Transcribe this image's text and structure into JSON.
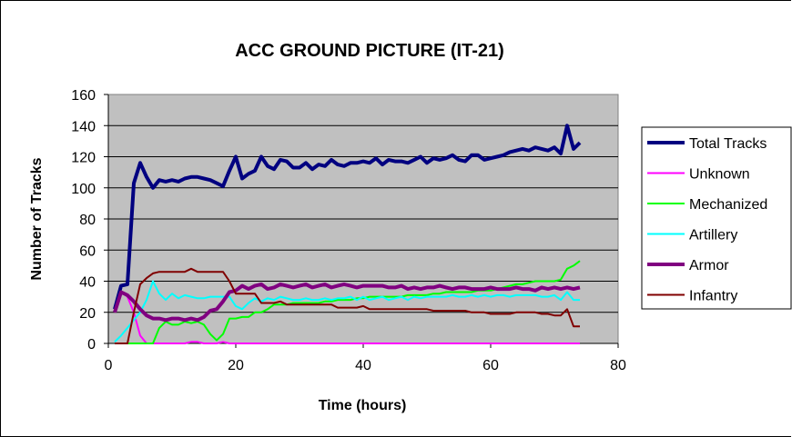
{
  "chart_data": {
    "type": "line",
    "title": "ACC GROUND PICTURE (IT-21)",
    "xlabel": "Time (hours)",
    "ylabel": "Number of Tracks",
    "xlim": [
      0,
      80
    ],
    "ylim": [
      0,
      160
    ],
    "xticks": [
      0,
      20,
      40,
      60,
      80
    ],
    "yticks": [
      0,
      20,
      40,
      60,
      80,
      100,
      120,
      140,
      160
    ],
    "grid": "horizontal",
    "legend_position": "right",
    "plot_background": "#c0c0c0",
    "series": [
      {
        "name": "Total Tracks",
        "color": "#000080",
        "width": 4,
        "x": [
          1,
          2,
          3,
          4,
          5,
          6,
          7,
          8,
          9,
          10,
          11,
          12,
          13,
          14,
          15,
          16,
          17,
          18,
          19,
          20,
          21,
          22,
          23,
          24,
          25,
          26,
          27,
          28,
          29,
          30,
          31,
          32,
          33,
          34,
          35,
          36,
          37,
          38,
          39,
          40,
          41,
          42,
          43,
          44,
          45,
          46,
          47,
          48,
          49,
          50,
          51,
          52,
          53,
          54,
          55,
          56,
          57,
          58,
          59,
          60,
          61,
          62,
          63,
          64,
          65,
          66,
          67,
          68,
          69,
          70,
          71,
          72,
          73,
          74
        ],
        "y": [
          22,
          37,
          38,
          103,
          116,
          107,
          100,
          105,
          104,
          105,
          104,
          106,
          107,
          107,
          106,
          105,
          103,
          101,
          111,
          120,
          106,
          109,
          111,
          120,
          114,
          112,
          118,
          117,
          113,
          113,
          116,
          112,
          115,
          114,
          118,
          115,
          114,
          116,
          116,
          117,
          116,
          119,
          115,
          118,
          117,
          117,
          116,
          118,
          120,
          116,
          119,
          118,
          119,
          121,
          118,
          117,
          121,
          121,
          118,
          119,
          120,
          121,
          123,
          124,
          125,
          124,
          126,
          125,
          124,
          126,
          122,
          140,
          125,
          129
        ]
      },
      {
        "name": "Unknown",
        "color": "#ff00ff",
        "width": 2,
        "x": [
          1,
          2,
          3,
          4,
          5,
          6,
          7,
          8,
          9,
          10,
          11,
          12,
          13,
          14,
          15,
          16,
          17,
          18,
          19,
          20,
          30,
          40,
          50,
          60,
          70,
          74
        ],
        "y": [
          20,
          33,
          30,
          20,
          5,
          0,
          0,
          0,
          0,
          0,
          0,
          0,
          1,
          1,
          0,
          0,
          0,
          1,
          0,
          0,
          0,
          0,
          0,
          0,
          0,
          0
        ]
      },
      {
        "name": "Mechanized",
        "color": "#00ff00",
        "width": 2,
        "x": [
          1,
          2,
          3,
          4,
          5,
          6,
          7,
          8,
          9,
          10,
          11,
          12,
          13,
          14,
          15,
          16,
          17,
          18,
          19,
          20,
          21,
          22,
          23,
          24,
          25,
          26,
          27,
          28,
          29,
          30,
          31,
          32,
          33,
          34,
          35,
          36,
          37,
          38,
          39,
          40,
          41,
          42,
          43,
          44,
          45,
          46,
          47,
          48,
          49,
          50,
          51,
          52,
          53,
          54,
          55,
          56,
          57,
          58,
          59,
          60,
          61,
          62,
          63,
          64,
          65,
          66,
          67,
          68,
          69,
          70,
          71,
          72,
          73,
          74
        ],
        "y": [
          0,
          0,
          0,
          0,
          0,
          0,
          0,
          10,
          14,
          12,
          12,
          14,
          13,
          14,
          12,
          6,
          2,
          6,
          16,
          16,
          17,
          17,
          20,
          20,
          22,
          25,
          25,
          25,
          26,
          26,
          26,
          26,
          26,
          27,
          27,
          28,
          28,
          28,
          29,
          29,
          30,
          30,
          30,
          30,
          30,
          30,
          31,
          31,
          31,
          31,
          32,
          32,
          33,
          33,
          33,
          33,
          33,
          34,
          34,
          34,
          35,
          36,
          37,
          38,
          38,
          39,
          40,
          40,
          40,
          40,
          41,
          48,
          50,
          53
        ]
      },
      {
        "name": "Artillery",
        "color": "#00ffff",
        "width": 2,
        "x": [
          1,
          2,
          3,
          4,
          5,
          6,
          7,
          8,
          9,
          10,
          11,
          12,
          13,
          14,
          15,
          16,
          17,
          18,
          19,
          20,
          21,
          22,
          23,
          24,
          25,
          26,
          27,
          28,
          29,
          30,
          31,
          32,
          33,
          34,
          35,
          36,
          37,
          38,
          39,
          40,
          41,
          42,
          43,
          44,
          45,
          46,
          47,
          48,
          49,
          50,
          51,
          52,
          53,
          54,
          55,
          56,
          57,
          58,
          59,
          60,
          61,
          62,
          63,
          64,
          65,
          66,
          67,
          68,
          69,
          70,
          71,
          72,
          73,
          74
        ],
        "y": [
          1,
          5,
          10,
          15,
          20,
          28,
          40,
          32,
          28,
          32,
          29,
          31,
          30,
          29,
          29,
          30,
          30,
          30,
          30,
          24,
          22,
          26,
          29,
          27,
          29,
          28,
          30,
          29,
          28,
          28,
          29,
          28,
          28,
          29,
          28,
          29,
          29,
          30,
          28,
          30,
          28,
          29,
          30,
          28,
          29,
          30,
          28,
          30,
          29,
          30,
          30,
          30,
          30,
          31,
          30,
          30,
          31,
          30,
          31,
          30,
          31,
          31,
          30,
          31,
          31,
          31,
          31,
          30,
          30,
          31,
          28,
          33,
          28,
          28
        ]
      },
      {
        "name": "Armor",
        "color": "#800080",
        "width": 4,
        "x": [
          1,
          2,
          3,
          4,
          5,
          6,
          7,
          8,
          9,
          10,
          11,
          12,
          13,
          14,
          15,
          16,
          17,
          18,
          19,
          20,
          21,
          22,
          23,
          24,
          25,
          26,
          27,
          28,
          29,
          30,
          31,
          32,
          33,
          34,
          35,
          36,
          37,
          38,
          39,
          40,
          41,
          42,
          43,
          44,
          45,
          46,
          47,
          48,
          49,
          50,
          51,
          52,
          53,
          54,
          55,
          56,
          57,
          58,
          59,
          60,
          61,
          62,
          63,
          64,
          65,
          66,
          67,
          68,
          69,
          70,
          71,
          72,
          73,
          74
        ],
        "y": [
          20,
          33,
          31,
          27,
          22,
          18,
          16,
          16,
          15,
          16,
          16,
          15,
          16,
          15,
          17,
          21,
          22,
          27,
          33,
          34,
          37,
          35,
          37,
          38,
          35,
          36,
          38,
          37,
          36,
          37,
          38,
          36,
          37,
          38,
          36,
          37,
          38,
          37,
          36,
          37,
          37,
          37,
          37,
          36,
          36,
          37,
          35,
          36,
          35,
          36,
          36,
          37,
          36,
          35,
          36,
          36,
          35,
          35,
          35,
          36,
          35,
          35,
          35,
          36,
          35,
          35,
          34,
          36,
          35,
          36,
          35,
          36,
          35,
          36
        ]
      },
      {
        "name": "Infantry",
        "color": "#800000",
        "width": 2,
        "x": [
          1,
          2,
          3,
          4,
          5,
          6,
          7,
          8,
          9,
          10,
          11,
          12,
          13,
          14,
          15,
          16,
          17,
          18,
          19,
          20,
          21,
          22,
          23,
          24,
          25,
          26,
          27,
          28,
          29,
          30,
          31,
          32,
          33,
          34,
          35,
          36,
          37,
          38,
          39,
          40,
          41,
          42,
          43,
          44,
          45,
          46,
          47,
          48,
          49,
          50,
          51,
          52,
          53,
          54,
          55,
          56,
          57,
          58,
          59,
          60,
          61,
          62,
          63,
          64,
          65,
          66,
          67,
          68,
          69,
          70,
          71,
          72,
          73,
          74
        ],
        "y": [
          0,
          0,
          0,
          20,
          38,
          42,
          45,
          46,
          46,
          46,
          46,
          46,
          48,
          46,
          46,
          46,
          46,
          46,
          40,
          32,
          32,
          32,
          32,
          26,
          26,
          26,
          27,
          25,
          25,
          25,
          25,
          25,
          25,
          25,
          25,
          23,
          23,
          23,
          23,
          24,
          22,
          22,
          22,
          22,
          22,
          22,
          22,
          22,
          22,
          22,
          21,
          21,
          21,
          21,
          21,
          21,
          20,
          20,
          20,
          19,
          19,
          19,
          19,
          20,
          20,
          20,
          20,
          19,
          19,
          18,
          18,
          22,
          11,
          11
        ]
      }
    ]
  }
}
